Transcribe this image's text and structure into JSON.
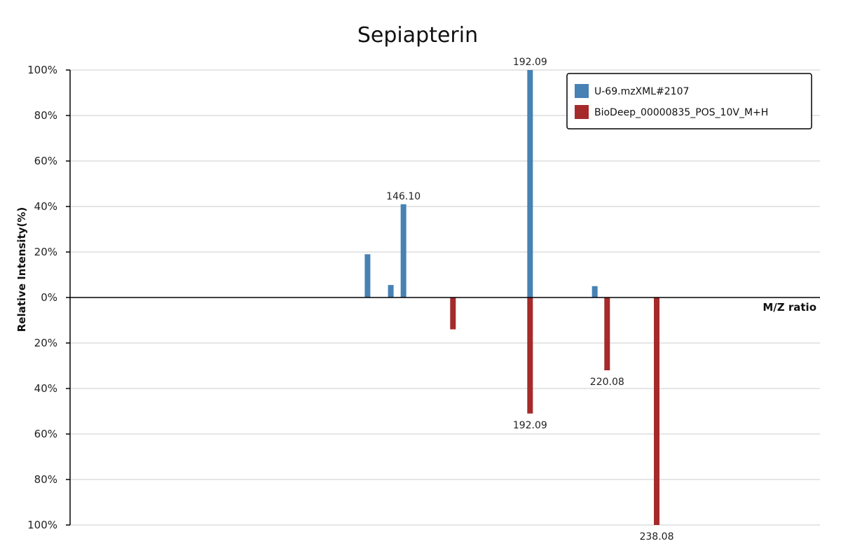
{
  "chart_data": {
    "type": "bar",
    "title": "Sepiapterin",
    "xlabel": "M/Z ratio",
    "ylabel": "Relative Intensity(%)",
    "ylim": [
      -100,
      100
    ],
    "yticks": [
      {
        "value": 100,
        "label": "100%"
      },
      {
        "value": 80,
        "label": "80%"
      },
      {
        "value": 60,
        "label": "60%"
      },
      {
        "value": 40,
        "label": "40%"
      },
      {
        "value": 20,
        "label": "20%"
      },
      {
        "value": 0,
        "label": "0%"
      },
      {
        "value": -20,
        "label": "20%"
      },
      {
        "value": -40,
        "label": "40%"
      },
      {
        "value": -60,
        "label": "60%"
      },
      {
        "value": -80,
        "label": "80%"
      },
      {
        "value": -100,
        "label": "100%"
      }
    ],
    "grid": true,
    "legend_position": "top-right",
    "series": [
      {
        "name": "U-69.mzXML#2107",
        "color": "#4682b4",
        "direction": "up",
        "peaks": [
          {
            "mz": 133.05,
            "intensity": 19,
            "label": ""
          },
          {
            "mz": 141.5,
            "intensity": 5.5,
            "label": ""
          },
          {
            "mz": 146.1,
            "intensity": 41,
            "label": "146.10"
          },
          {
            "mz": 192.09,
            "intensity": 100,
            "label": "192.09"
          },
          {
            "mz": 215.6,
            "intensity": 5,
            "label": ""
          }
        ]
      },
      {
        "name": "BioDeep_00000835_POS_10V_M+H",
        "color": "#a52a2a",
        "direction": "down",
        "peaks": [
          {
            "mz": 164.08,
            "intensity": 14,
            "label": ""
          },
          {
            "mz": 192.09,
            "intensity": 51,
            "label": "192.09"
          },
          {
            "mz": 220.08,
            "intensity": 32,
            "label": "220.08"
          },
          {
            "mz": 238.08,
            "intensity": 100,
            "label": "238.08"
          }
        ]
      }
    ]
  }
}
